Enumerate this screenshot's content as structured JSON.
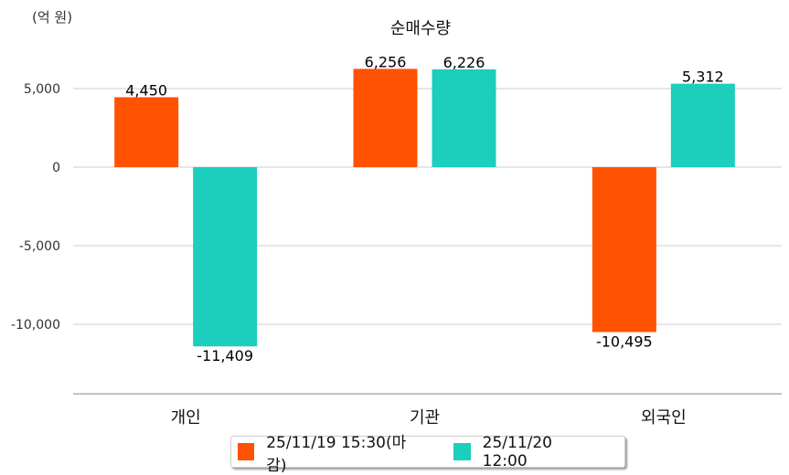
{
  "chart_data": {
    "type": "bar",
    "title": "순매수량",
    "unit_label": "(억 원)",
    "categories": [
      "개인",
      "기관",
      "외국인"
    ],
    "series": [
      {
        "name": "25/11/19 15:30(마감)",
        "color": "#ff5200",
        "values": [
          4450,
          6256,
          -10495
        ],
        "labels": [
          "4,450",
          "6,256",
          "-10,495"
        ]
      },
      {
        "name": "25/11/20 12:00",
        "color": "#1ccebc",
        "values": [
          -11409,
          6226,
          5312
        ],
        "labels": [
          "-11,409",
          "6,226",
          "5,312"
        ]
      }
    ],
    "yticks": [
      5000,
      0,
      -5000,
      -10000
    ],
    "ytick_labels": [
      "5,000",
      "0",
      "-5,000",
      "-10,000"
    ],
    "ylim": [
      -14400,
      8000
    ],
    "grid": true,
    "legend_position": "bottom"
  }
}
